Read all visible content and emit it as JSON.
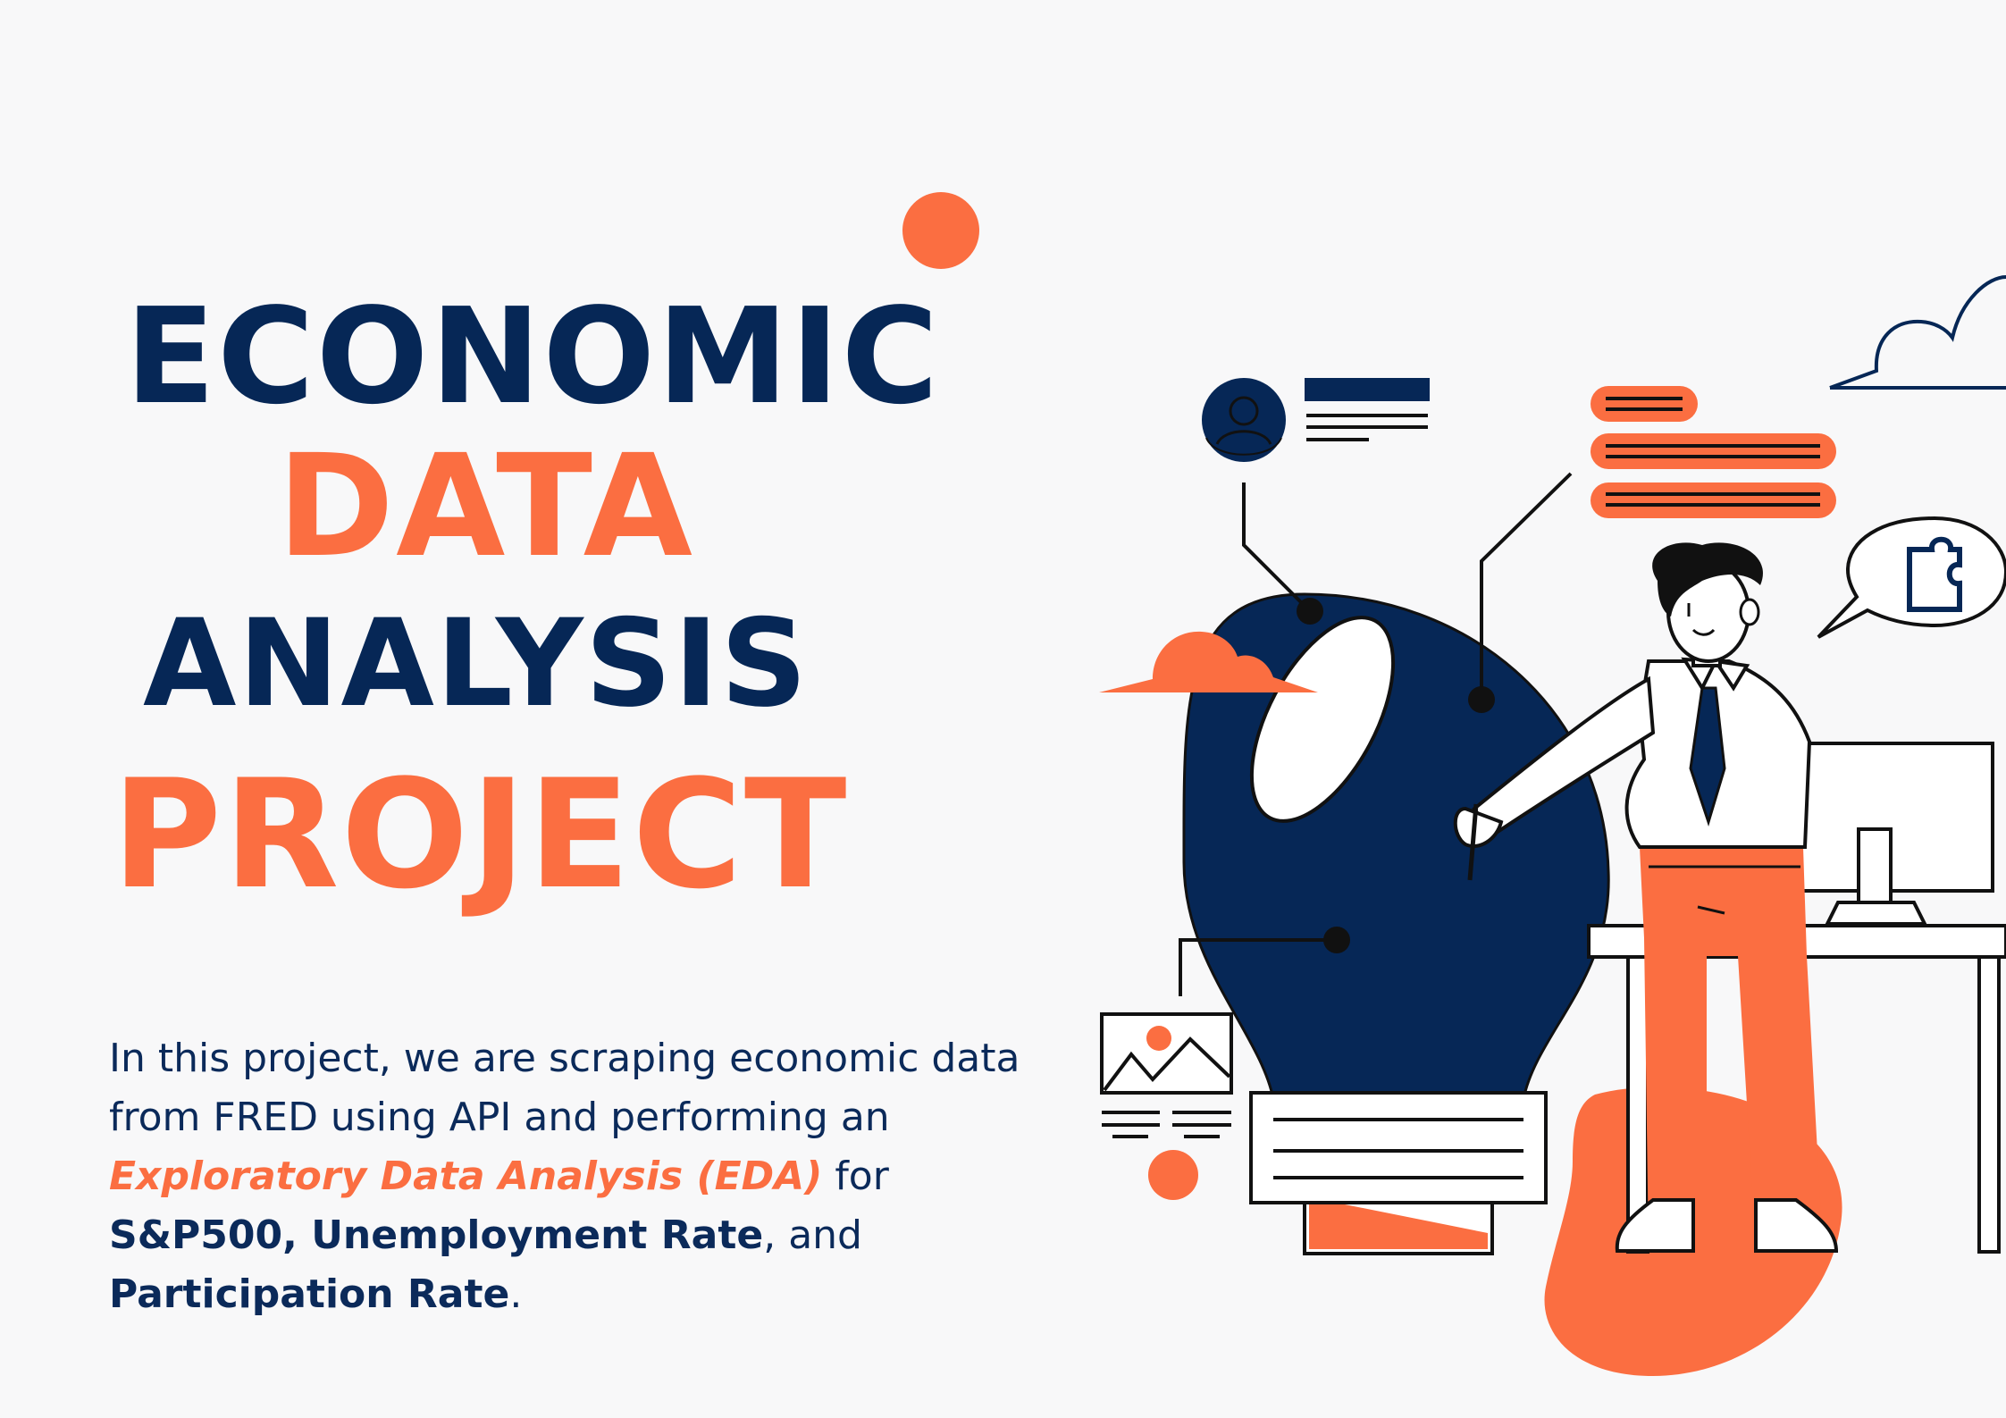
{
  "title": {
    "line1": "ECONOMIC",
    "line2": "DATA",
    "line3": "ANALYSIS",
    "line4": "PROJECT"
  },
  "description": {
    "part1": "In this project, we are scraping economic data from FRED using API and performing an ",
    "highlight": "Exploratory Data Analysis (EDA)",
    "part2": " for ",
    "metric1": "S&P500, Unemployment Rate",
    "part3": ", and ",
    "metric2": "Participation Rate",
    "part4": "."
  },
  "colors": {
    "navy": "#062756",
    "orange": "#fb6e41",
    "background": "#f8f8f9"
  },
  "icons": [
    "lightbulb-icon",
    "person-avatar-icon",
    "cloud-icon",
    "speech-bubble-icon",
    "puzzle-icon",
    "image-placeholder-icon",
    "computer-monitor-icon",
    "desk-icon"
  ]
}
